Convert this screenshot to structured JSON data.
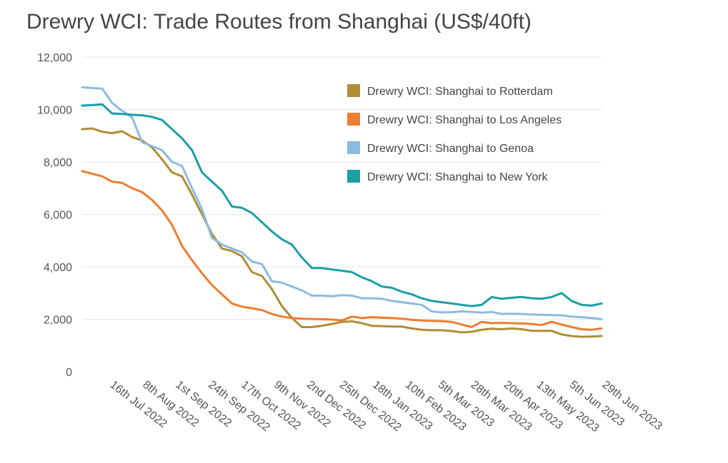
{
  "chart_data": {
    "type": "line",
    "title": "Drewry WCI: Trade Routes from Shanghai (US$/40ft)",
    "xlabel": "",
    "ylabel": "",
    "ylim": [
      0,
      12000
    ],
    "y_ticks": [
      "0",
      "2,000",
      "4,000",
      "6,000",
      "8,000",
      "10,000",
      "12,000"
    ],
    "x_tick_labels": [
      "16th Jul 2022",
      "8th Aug 2022",
      "1st Sep 2022",
      "24th Sep 2022",
      "17th Oct 2022",
      "9th Nov 2022",
      "2nd Dec 2022",
      "25th Dec 2022",
      "18th Jan 2023",
      "10th Feb 2023",
      "5th Mar 2023",
      "28th Mar 2023",
      "20th Apr 2023",
      "13th May 2023",
      "5th Jun 2023",
      "29th Jun 2023"
    ],
    "grid": true,
    "legend_position": "top-right",
    "x_start": "2022-06-30",
    "x_end": "2023-06-29",
    "series": [
      {
        "name": "Drewry WCI: Shanghai to Rotterdam",
        "color": "#b08d35",
        "points": [
          [
            "2022-06-30",
            9250
          ],
          [
            "2022-07-07",
            9280
          ],
          [
            "2022-07-14",
            9150
          ],
          [
            "2022-07-21",
            9100
          ],
          [
            "2022-07-28",
            9170
          ],
          [
            "2022-08-04",
            8950
          ],
          [
            "2022-08-11",
            8820
          ],
          [
            "2022-08-18",
            8550
          ],
          [
            "2022-08-25",
            8100
          ],
          [
            "2022-09-01",
            7600
          ],
          [
            "2022-09-08",
            7450
          ],
          [
            "2022-09-15",
            6750
          ],
          [
            "2022-09-22",
            6000
          ],
          [
            "2022-09-29",
            5250
          ],
          [
            "2022-10-06",
            4700
          ],
          [
            "2022-10-13",
            4600
          ],
          [
            "2022-10-20",
            4400
          ],
          [
            "2022-10-27",
            3800
          ],
          [
            "2022-11-03",
            3650
          ],
          [
            "2022-11-10",
            3150
          ],
          [
            "2022-11-17",
            2500
          ],
          [
            "2022-11-24",
            2050
          ],
          [
            "2022-12-01",
            1700
          ],
          [
            "2022-12-08",
            1700
          ],
          [
            "2022-12-15",
            1750
          ],
          [
            "2022-12-22",
            1820
          ],
          [
            "2022-12-29",
            1900
          ],
          [
            "2023-01-05",
            1920
          ],
          [
            "2023-01-12",
            1850
          ],
          [
            "2023-01-19",
            1750
          ],
          [
            "2023-01-26",
            1740
          ],
          [
            "2023-02-02",
            1720
          ],
          [
            "2023-02-09",
            1720
          ],
          [
            "2023-02-16",
            1650
          ],
          [
            "2023-02-23",
            1600
          ],
          [
            "2023-03-02",
            1580
          ],
          [
            "2023-03-09",
            1580
          ],
          [
            "2023-03-16",
            1550
          ],
          [
            "2023-03-23",
            1500
          ],
          [
            "2023-03-30",
            1520
          ],
          [
            "2023-04-06",
            1600
          ],
          [
            "2023-04-13",
            1640
          ],
          [
            "2023-04-20",
            1620
          ],
          [
            "2023-04-27",
            1650
          ],
          [
            "2023-05-04",
            1620
          ],
          [
            "2023-05-11",
            1560
          ],
          [
            "2023-05-18",
            1560
          ],
          [
            "2023-05-25",
            1560
          ],
          [
            "2023-06-01",
            1420
          ],
          [
            "2023-06-08",
            1360
          ],
          [
            "2023-06-15",
            1330
          ],
          [
            "2023-06-22",
            1340
          ],
          [
            "2023-06-29",
            1360
          ]
        ]
      },
      {
        "name": "Drewry WCI: Shanghai to Los Angeles",
        "color": "#ed7d31",
        "points": [
          [
            "2022-06-30",
            7650
          ],
          [
            "2022-07-07",
            7550
          ],
          [
            "2022-07-14",
            7450
          ],
          [
            "2022-07-21",
            7250
          ],
          [
            "2022-07-28",
            7200
          ],
          [
            "2022-08-04",
            7000
          ],
          [
            "2022-08-11",
            6850
          ],
          [
            "2022-08-18",
            6550
          ],
          [
            "2022-08-25",
            6150
          ],
          [
            "2022-09-01",
            5600
          ],
          [
            "2022-09-08",
            4800
          ],
          [
            "2022-09-15",
            4250
          ],
          [
            "2022-09-22",
            3750
          ],
          [
            "2022-09-29",
            3300
          ],
          [
            "2022-10-06",
            2950
          ],
          [
            "2022-10-13",
            2600
          ],
          [
            "2022-10-20",
            2480
          ],
          [
            "2022-10-27",
            2420
          ],
          [
            "2022-11-03",
            2350
          ],
          [
            "2022-11-10",
            2200
          ],
          [
            "2022-11-17",
            2100
          ],
          [
            "2022-11-24",
            2050
          ],
          [
            "2022-12-01",
            2020
          ],
          [
            "2022-12-08",
            2010
          ],
          [
            "2022-12-15",
            2000
          ],
          [
            "2022-12-22",
            1990
          ],
          [
            "2022-12-29",
            1950
          ],
          [
            "2023-01-05",
            2100
          ],
          [
            "2023-01-12",
            2050
          ],
          [
            "2023-01-19",
            2080
          ],
          [
            "2023-01-26",
            2060
          ],
          [
            "2023-02-02",
            2050
          ],
          [
            "2023-02-09",
            2020
          ],
          [
            "2023-02-16",
            1980
          ],
          [
            "2023-02-23",
            1950
          ],
          [
            "2023-03-02",
            1940
          ],
          [
            "2023-03-09",
            1930
          ],
          [
            "2023-03-16",
            1900
          ],
          [
            "2023-03-23",
            1800
          ],
          [
            "2023-03-30",
            1700
          ],
          [
            "2023-04-06",
            1900
          ],
          [
            "2023-04-13",
            1850
          ],
          [
            "2023-04-20",
            1860
          ],
          [
            "2023-04-27",
            1850
          ],
          [
            "2023-05-04",
            1840
          ],
          [
            "2023-05-11",
            1820
          ],
          [
            "2023-05-18",
            1780
          ],
          [
            "2023-05-25",
            1900
          ],
          [
            "2023-06-01",
            1800
          ],
          [
            "2023-06-08",
            1700
          ],
          [
            "2023-06-15",
            1620
          ],
          [
            "2023-06-22",
            1600
          ],
          [
            "2023-06-29",
            1650
          ]
        ]
      },
      {
        "name": "Drewry WCI: Shanghai to Genoa",
        "color": "#8bbbe1",
        "points": [
          [
            "2022-06-30",
            10850
          ],
          [
            "2022-07-07",
            10820
          ],
          [
            "2022-07-14",
            10800
          ],
          [
            "2022-07-21",
            10250
          ],
          [
            "2022-07-28",
            9950
          ],
          [
            "2022-08-04",
            9700
          ],
          [
            "2022-08-11",
            8750
          ],
          [
            "2022-08-18",
            8600
          ],
          [
            "2022-08-25",
            8450
          ],
          [
            "2022-09-01",
            8000
          ],
          [
            "2022-09-08",
            7850
          ],
          [
            "2022-09-15",
            7000
          ],
          [
            "2022-09-22",
            6200
          ],
          [
            "2022-09-29",
            5100
          ],
          [
            "2022-10-06",
            4850
          ],
          [
            "2022-10-13",
            4700
          ],
          [
            "2022-10-20",
            4550
          ],
          [
            "2022-10-27",
            4200
          ],
          [
            "2022-11-03",
            4100
          ],
          [
            "2022-11-10",
            3450
          ],
          [
            "2022-11-17",
            3400
          ],
          [
            "2022-11-24",
            3250
          ],
          [
            "2022-12-01",
            3100
          ],
          [
            "2022-12-08",
            2900
          ],
          [
            "2022-12-15",
            2900
          ],
          [
            "2022-12-22",
            2880
          ],
          [
            "2022-12-29",
            2920
          ],
          [
            "2023-01-05",
            2900
          ],
          [
            "2023-01-12",
            2800
          ],
          [
            "2023-01-19",
            2800
          ],
          [
            "2023-01-26",
            2780
          ],
          [
            "2023-02-02",
            2700
          ],
          [
            "2023-02-09",
            2650
          ],
          [
            "2023-02-16",
            2600
          ],
          [
            "2023-02-23",
            2550
          ],
          [
            "2023-03-02",
            2300
          ],
          [
            "2023-03-09",
            2260
          ],
          [
            "2023-03-16",
            2270
          ],
          [
            "2023-03-23",
            2300
          ],
          [
            "2023-03-30",
            2280
          ],
          [
            "2023-04-06",
            2250
          ],
          [
            "2023-04-13",
            2280
          ],
          [
            "2023-04-20",
            2200
          ],
          [
            "2023-04-27",
            2210
          ],
          [
            "2023-05-04",
            2200
          ],
          [
            "2023-05-11",
            2180
          ],
          [
            "2023-05-18",
            2170
          ],
          [
            "2023-05-25",
            2160
          ],
          [
            "2023-06-01",
            2150
          ],
          [
            "2023-06-08",
            2100
          ],
          [
            "2023-06-15",
            2080
          ],
          [
            "2023-06-22",
            2050
          ],
          [
            "2023-06-29",
            2000
          ]
        ]
      },
      {
        "name": "Drewry WCI: Shanghai to New York",
        "color": "#1a9fa6",
        "points": [
          [
            "2022-06-30",
            10150
          ],
          [
            "2022-07-07",
            10170
          ],
          [
            "2022-07-14",
            10200
          ],
          [
            "2022-07-21",
            9850
          ],
          [
            "2022-07-28",
            9830
          ],
          [
            "2022-08-04",
            9800
          ],
          [
            "2022-08-11",
            9780
          ],
          [
            "2022-08-18",
            9720
          ],
          [
            "2022-08-25",
            9600
          ],
          [
            "2022-09-01",
            9250
          ],
          [
            "2022-09-08",
            8900
          ],
          [
            "2022-09-15",
            8450
          ],
          [
            "2022-09-22",
            7600
          ],
          [
            "2022-09-29",
            7250
          ],
          [
            "2022-10-06",
            6900
          ],
          [
            "2022-10-13",
            6300
          ],
          [
            "2022-10-20",
            6250
          ],
          [
            "2022-10-27",
            6050
          ],
          [
            "2022-11-03",
            5700
          ],
          [
            "2022-11-10",
            5350
          ],
          [
            "2022-11-17",
            5050
          ],
          [
            "2022-11-24",
            4850
          ],
          [
            "2022-12-01",
            4350
          ],
          [
            "2022-12-08",
            3950
          ],
          [
            "2022-12-15",
            3950
          ],
          [
            "2022-12-22",
            3900
          ],
          [
            "2022-12-29",
            3850
          ],
          [
            "2023-01-05",
            3800
          ],
          [
            "2023-01-12",
            3600
          ],
          [
            "2023-01-19",
            3450
          ],
          [
            "2023-01-26",
            3250
          ],
          [
            "2023-02-02",
            3200
          ],
          [
            "2023-02-09",
            3050
          ],
          [
            "2023-02-16",
            2950
          ],
          [
            "2023-02-23",
            2800
          ],
          [
            "2023-03-02",
            2700
          ],
          [
            "2023-03-09",
            2650
          ],
          [
            "2023-03-16",
            2600
          ],
          [
            "2023-03-23",
            2550
          ],
          [
            "2023-03-30",
            2500
          ],
          [
            "2023-04-06",
            2550
          ],
          [
            "2023-04-13",
            2850
          ],
          [
            "2023-04-20",
            2780
          ],
          [
            "2023-04-27",
            2820
          ],
          [
            "2023-05-04",
            2850
          ],
          [
            "2023-05-11",
            2800
          ],
          [
            "2023-05-18",
            2780
          ],
          [
            "2023-05-25",
            2850
          ],
          [
            "2023-06-01",
            3000
          ],
          [
            "2023-06-08",
            2700
          ],
          [
            "2023-06-15",
            2550
          ],
          [
            "2023-06-22",
            2520
          ],
          [
            "2023-06-29",
            2600
          ]
        ]
      }
    ]
  }
}
